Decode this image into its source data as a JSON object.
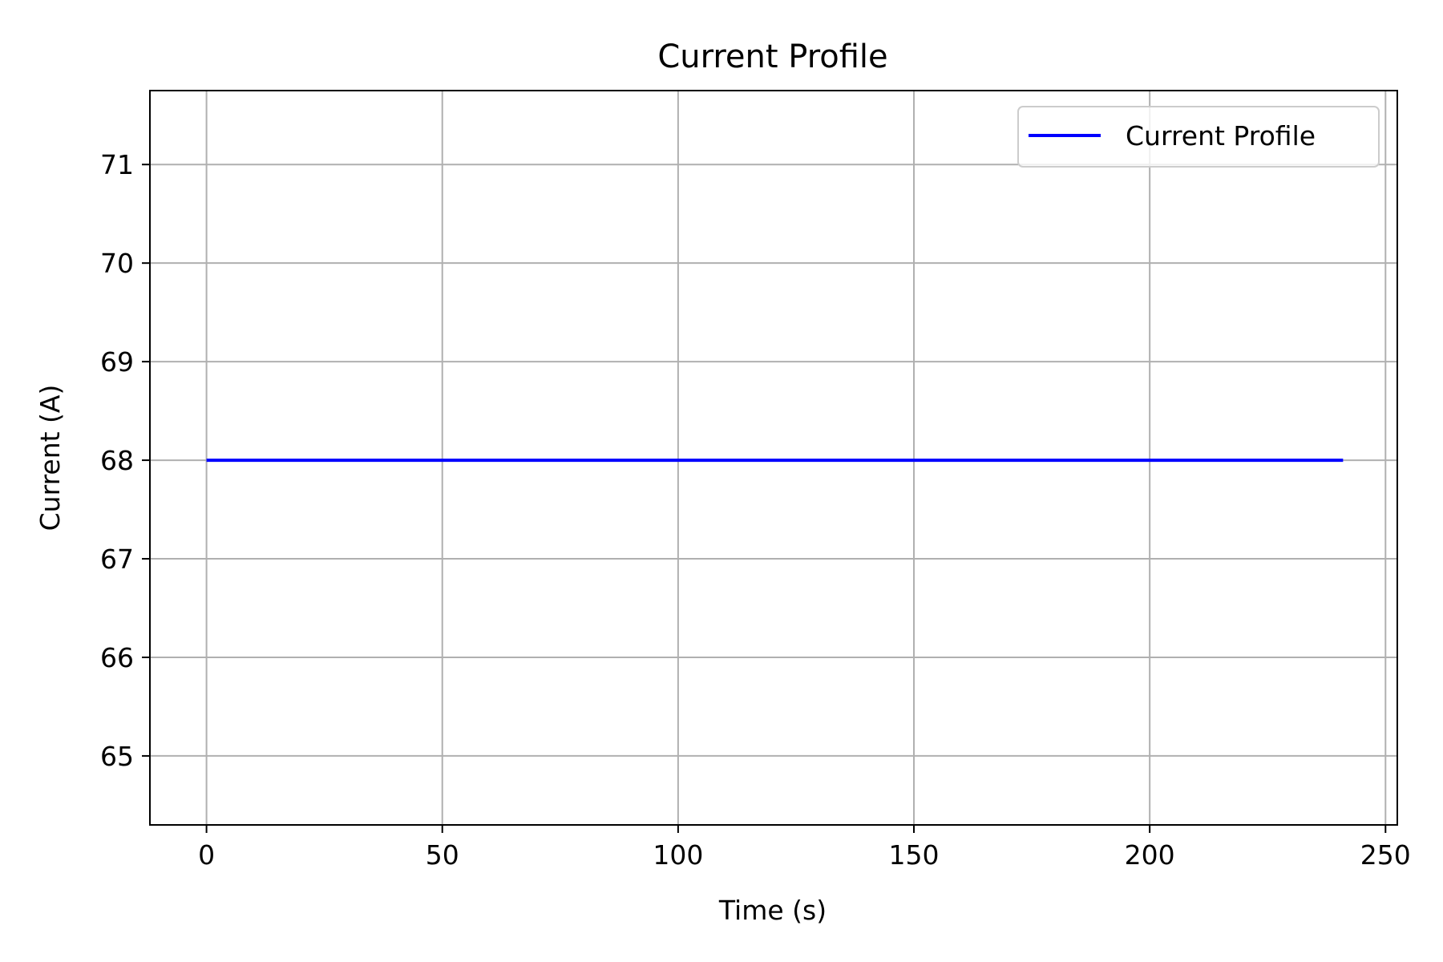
{
  "chart_data": {
    "type": "line",
    "title": "Current Profile",
    "xlabel": "Time (s)",
    "ylabel": "Current (A)",
    "xlim": [
      -12,
      252.5
    ],
    "ylim": [
      64.3,
      71.75
    ],
    "xticks": [
      0,
      50,
      100,
      150,
      200,
      250
    ],
    "xtick_labels": [
      "0",
      "50",
      "100",
      "150",
      "200",
      "250"
    ],
    "yticks": [
      65,
      66,
      67,
      68,
      69,
      70,
      71
    ],
    "ytick_labels": [
      "65",
      "66",
      "67",
      "68",
      "69",
      "70",
      "71"
    ],
    "grid": true,
    "legend_position": "top-right",
    "series": [
      {
        "name": "Current Profile",
        "color": "#0000ff",
        "x": [
          0,
          241
        ],
        "y": [
          68,
          68
        ]
      }
    ]
  }
}
